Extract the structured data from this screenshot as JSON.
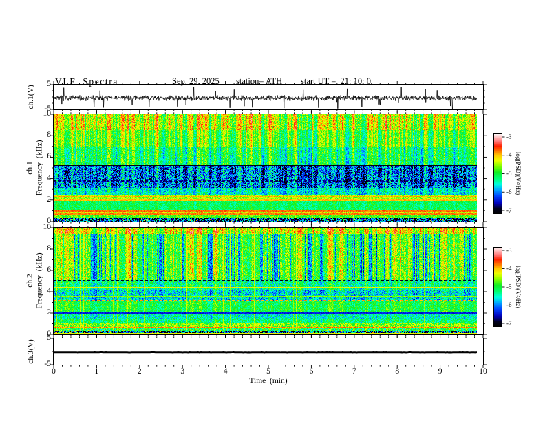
{
  "header": {
    "title": "VLF  Spectra",
    "date": "Sep. 29, 2025",
    "station": "station= ATH",
    "start_ut": "start UT =  21: 10: 0"
  },
  "axes": {
    "time": {
      "label": "Time  (min)",
      "range": [
        0,
        10
      ],
      "major_ticks": [
        0,
        1,
        2,
        3,
        4,
        5,
        6,
        7,
        8,
        9,
        10
      ],
      "minor_step": 0.2
    },
    "freq": {
      "range": [
        0,
        10
      ],
      "major_ticks": [
        10,
        8,
        6,
        4,
        2,
        0
      ],
      "minor_ticks": [
        9,
        7,
        5,
        3,
        1
      ]
    },
    "volt": {
      "range": [
        -5,
        5
      ],
      "major_ticks": [
        5,
        -5
      ],
      "minor_ticks": [
        2.5,
        0,
        -2.5
      ]
    }
  },
  "panels": {
    "wave1": {
      "ylabel": "ch.1(V)"
    },
    "spec1": {
      "ylabel_line1": "ch.1",
      "ylabel_line2": "Frequency  (kHz)"
    },
    "spec2": {
      "ylabel_line1": "ch.2",
      "ylabel_line2": "Frequency  (kHz)"
    },
    "wave3": {
      "ylabel": "ch.3(V)"
    }
  },
  "colorbar": {
    "label": "log(PSD)(V²/Hz)",
    "ticks": [
      -3,
      -4,
      -5,
      -6,
      -7
    ],
    "range": [
      -7,
      -3
    ],
    "stops": [
      [
        0,
        "#000000"
      ],
      [
        0.06,
        "#000022"
      ],
      [
        0.13,
        "#0000bb"
      ],
      [
        0.22,
        "#0044ff"
      ],
      [
        0.3,
        "#00aaff"
      ],
      [
        0.37,
        "#00ffdd"
      ],
      [
        0.44,
        "#00ff77"
      ],
      [
        0.52,
        "#11ee22"
      ],
      [
        0.6,
        "#88ff00"
      ],
      [
        0.67,
        "#eeff00"
      ],
      [
        0.73,
        "#ffcc00"
      ],
      [
        0.79,
        "#ff7700"
      ],
      [
        0.85,
        "#ff2200"
      ],
      [
        0.91,
        "#ff7777"
      ],
      [
        0.96,
        "#ffbbbb"
      ],
      [
        1,
        "#fff2f2"
      ]
    ]
  },
  "chart_data": [
    {
      "type": "line",
      "name": "ch1-waveform",
      "ylabel": "ch.1(V)",
      "ylim": [
        -5,
        5
      ],
      "xlim": [
        0,
        10
      ],
      "color": "#000000",
      "data_end_min": 9.85,
      "signal": {
        "seed": 7,
        "n": 1300,
        "baseline": -0.4,
        "noise": 0.62,
        "spike_rate": 0.02,
        "spike_min": 2.0,
        "spike_max": 4.6,
        "thick": 0.8
      }
    },
    {
      "type": "heatmap",
      "name": "ch1-spectrogram",
      "ylabel": "Frequency (kHz)",
      "fmax": 10,
      "psd_log_range": [
        -7,
        -3
      ],
      "seed": 11,
      "data_end_min": 9.85,
      "bands": [
        {
          "f": [
            0,
            0.35
          ],
          "level": -6.3,
          "noise": 1.25,
          "streak": 0.1,
          "spark": 0.03
        },
        {
          "f": [
            0.35,
            0.6
          ],
          "level": -4.75,
          "noise": 0.35,
          "streak": 0.1
        },
        {
          "f": [
            0.6,
            1.05
          ],
          "level": -4.25,
          "noise": 0.45,
          "streak": 0.1
        },
        {
          "f": [
            1.05,
            1.9
          ],
          "level": -5.1,
          "noise": 0.3,
          "streak": 0.15
        },
        {
          "f": [
            1.9,
            2.45
          ],
          "level": -4.5,
          "noise": 0.35,
          "streak": 0.1
        },
        {
          "f": [
            2.45,
            3.1
          ],
          "level": -5.45,
          "noise": 0.5,
          "streak": 0.3
        },
        {
          "f": [
            3.1,
            5.15
          ],
          "level": -5.95,
          "noise": 0.75,
          "streak": 0.55
        },
        {
          "f": [
            5.15,
            7.0
          ],
          "level": -5.05,
          "noise": 0.4,
          "streak": 0.55
        },
        {
          "f": [
            7.0,
            8.5
          ],
          "level": -4.7,
          "noise": 0.35,
          "streak": 0.6
        },
        {
          "f": [
            8.5,
            10
          ],
          "level": -4.35,
          "noise": 0.45,
          "streak": 0.65
        }
      ],
      "hlines": [
        {
          "f": 5.2,
          "w": 0.12,
          "level": -6.9
        },
        {
          "f": 3.8,
          "w": 0.1,
          "level": -6.6,
          "dash": true
        },
        {
          "f": 2.35,
          "w": 0.1,
          "level": -4.0
        },
        {
          "f": 2.0,
          "w": 0.1,
          "level": -4.05
        },
        {
          "f": 0.95,
          "w": 0.1,
          "level": -3.8
        },
        {
          "f": 0.7,
          "w": 0.1,
          "level": -3.85
        }
      ]
    },
    {
      "type": "heatmap",
      "name": "ch2-spectrogram",
      "ylabel": "Frequency (kHz)",
      "fmax": 10,
      "psd_log_range": [
        -7,
        -3
      ],
      "seed": 23,
      "data_end_min": 9.85,
      "vline_rate": 0.025,
      "bands": [
        {
          "f": [
            0,
            0.35
          ],
          "level": -6.2,
          "noise": 1.3,
          "streak": 0.1,
          "spark": 0.06
        },
        {
          "f": [
            0.35,
            0.55
          ],
          "level": -5.0,
          "noise": 0.6,
          "streak": 0.1
        },
        {
          "f": [
            0.55,
            0.68
          ],
          "level": -3.9,
          "noise": 0.25,
          "streak": 0.0
        },
        {
          "f": [
            0.68,
            1.0
          ],
          "level": -4.65,
          "noise": 0.5,
          "streak": 0.1
        },
        {
          "f": [
            1.0,
            1.5
          ],
          "level": -5.2,
          "noise": 0.4,
          "streak": 0.2
        },
        {
          "f": [
            1.5,
            2.0
          ],
          "level": -5.4,
          "noise": 0.45,
          "streak": 0.2
        },
        {
          "f": [
            2.0,
            3.1
          ],
          "level": -5.0,
          "noise": 0.35,
          "streak": 0.25
        },
        {
          "f": [
            3.1,
            4.2
          ],
          "level": -5.55,
          "noise": 0.6,
          "streak": 0.3
        },
        {
          "f": [
            4.2,
            5.1
          ],
          "level": -5.25,
          "noise": 0.5,
          "streak": 0.3
        },
        {
          "f": [
            5.1,
            9.4
          ],
          "level": -4.85,
          "noise": 0.45,
          "streak": 0.6,
          "dip": 0.55
        },
        {
          "f": [
            9.4,
            10
          ],
          "level": -4.3,
          "noise": 0.5,
          "streak": 0.6
        }
      ],
      "hlines": [
        {
          "f": 5.05,
          "w": 0.1,
          "level": -6.8,
          "dash": true
        },
        {
          "f": 4.4,
          "w": 0.1,
          "level": -4.25
        },
        {
          "f": 3.55,
          "w": 0.08,
          "level": -4.6
        },
        {
          "f": 3.2,
          "w": 0.1,
          "level": -4.0,
          "dash": true
        },
        {
          "f": 2.0,
          "w": 0.1,
          "level": -6.3
        },
        {
          "f": 0.22,
          "w": 0.07,
          "level": -5.6
        },
        {
          "f": 0.1,
          "w": 0.08,
          "level": -4.3
        }
      ]
    },
    {
      "type": "line",
      "name": "ch3-waveform",
      "ylabel": "ch.3(V)",
      "ylim": [
        -5,
        5
      ],
      "xlim": [
        0,
        10
      ],
      "color": "#000000",
      "data_end_min": 9.85,
      "signal": {
        "seed": 9,
        "n": 300,
        "baseline": -0.2,
        "noise": 0.03,
        "spike_rate": 0,
        "spike_min": 0,
        "spike_max": 0,
        "thick": 3
      }
    }
  ]
}
